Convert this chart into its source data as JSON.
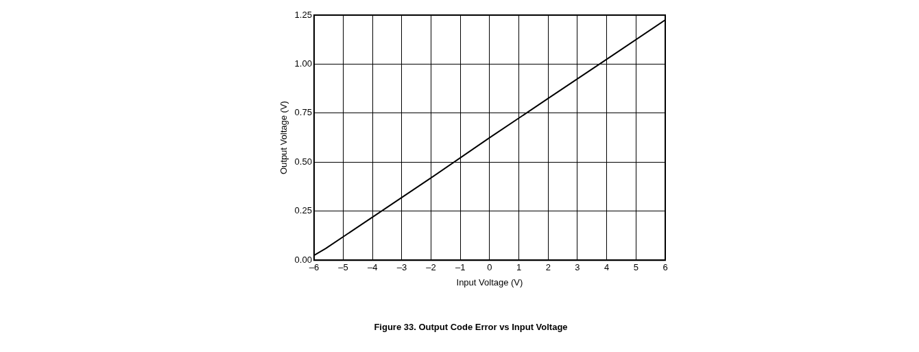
{
  "chart_data": {
    "type": "line",
    "title": "Figure 33. Output Code Error vs Input Voltage",
    "xlabel": "Input Voltage (V)",
    "ylabel": "Output Voltage (V)",
    "series": [
      {
        "color": "#000000",
        "x": [
          -6,
          -5.6,
          -4,
          -2,
          0,
          2,
          4,
          6
        ],
        "values": [
          0.025,
          0.06,
          0.22,
          0.42,
          0.625,
          0.825,
          1.025,
          1.225
        ]
      }
    ],
    "xlim": [
      -6,
      6
    ],
    "xticks": [
      {
        "value": -6,
        "label": "–6"
      },
      {
        "value": -5,
        "label": "–5"
      },
      {
        "value": -4,
        "label": "–4"
      },
      {
        "value": -3,
        "label": "–3"
      },
      {
        "value": -2,
        "label": "–2"
      },
      {
        "value": -1,
        "label": "–1"
      },
      0,
      1,
      2,
      3,
      4,
      5,
      6
    ],
    "ylim": [
      0,
      1.25
    ],
    "yticks": [
      {
        "value": 0,
        "label": "0.00"
      },
      0.25,
      {
        "value": 0.5,
        "label": "0.50"
      },
      0.75,
      {
        "value": 1,
        "label": "1.00"
      },
      1.25
    ],
    "grid": true,
    "legend": false,
    "marker": "none",
    "line_style": "solid"
  }
}
